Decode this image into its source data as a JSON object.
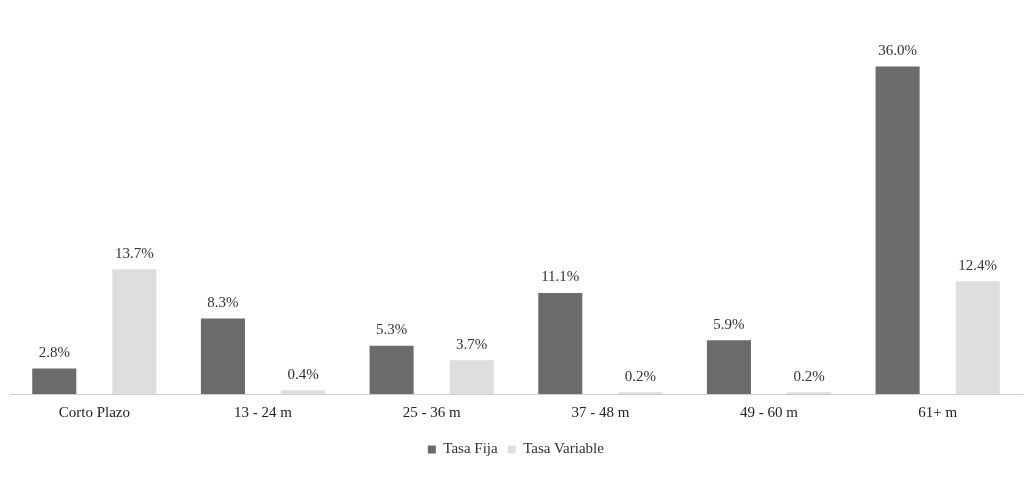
{
  "chart_data": {
    "type": "bar",
    "categories": [
      "Corto Plazo",
      "13 - 24 m",
      "25 - 36 m",
      "37 - 48 m",
      "49 - 60 m",
      "61+ m"
    ],
    "series": [
      {
        "name": "Tasa Fija",
        "color": "#6b6b6b",
        "values": [
          2.8,
          8.3,
          5.3,
          11.1,
          5.9,
          36.0
        ],
        "value_labels": [
          "2.8%",
          "8.3%",
          "5.3%",
          "11.1%",
          "5.9%",
          "36.0%"
        ]
      },
      {
        "name": "Tasa Variable",
        "color": "#dedede",
        "values": [
          13.7,
          0.4,
          3.7,
          0.2,
          0.2,
          12.4
        ],
        "value_labels": [
          "13.7%",
          "0.4%",
          "3.7%",
          "0.2%",
          "0.2%",
          "12.4%"
        ]
      }
    ],
    "legend": "bottom",
    "grid": false
  }
}
